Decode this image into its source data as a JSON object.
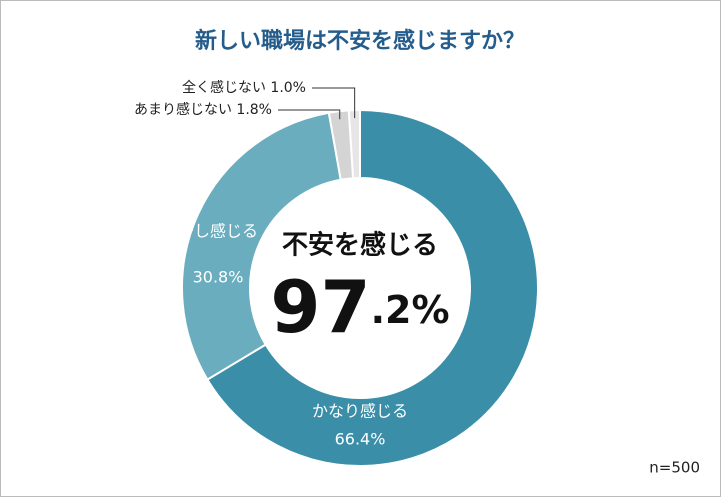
{
  "chart_data": {
    "type": "donut",
    "title": "新しい職場は不安を感じますか？",
    "categories": [
      "かなり感じる",
      "少し感じる",
      "あまり感じない",
      "全く感じない"
    ],
    "values": [
      66.4,
      30.8,
      1.8,
      1.0
    ],
    "value_labels": [
      "66.4%",
      "30.8%",
      "1.8%",
      "1.0%"
    ],
    "colors": [
      "#3a8ea8",
      "#6aadbf",
      "#d4d4d4",
      "#e6e6e6"
    ],
    "center_label": "不安を感じる",
    "center_value_label": "97.2%",
    "note": "n=500"
  }
}
